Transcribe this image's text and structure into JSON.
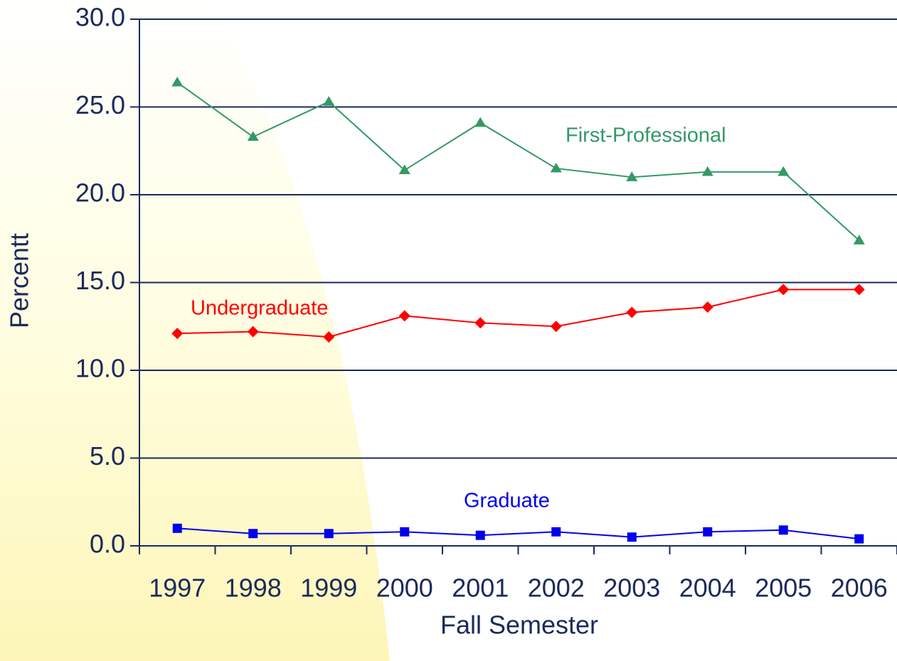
{
  "chart_data": {
    "type": "line",
    "x_label": "Fall Semester",
    "y_label": "Percentt",
    "categories": [
      "1997",
      "1998",
      "1999",
      "2000",
      "2001",
      "2002",
      "2003",
      "2004",
      "2005",
      "2006"
    ],
    "series": [
      {
        "name": "First-Professional",
        "color": "#339966",
        "marker": "triangle",
        "values": [
          26.4,
          23.3,
          25.3,
          21.4,
          24.1,
          21.5,
          21.0,
          21.3,
          21.3,
          17.4
        ]
      },
      {
        "name": "Undergraduate",
        "color": "#ff0000",
        "marker": "diamond",
        "values": [
          12.1,
          12.2,
          11.9,
          13.1,
          12.7,
          12.5,
          13.3,
          13.6,
          14.6,
          14.6
        ]
      },
      {
        "name": "Graduate",
        "color": "#0000ee",
        "marker": "square",
        "values": [
          1.0,
          0.7,
          0.7,
          0.8,
          0.6,
          0.8,
          0.5,
          0.8,
          0.9,
          0.4
        ]
      }
    ],
    "ylim": [
      0,
      30
    ],
    "yticks": [
      {
        "value": 0,
        "label": "0.0"
      },
      {
        "value": 5,
        "label": "5.0"
      },
      {
        "value": 10,
        "label": "10.0"
      },
      {
        "value": 15,
        "label": "15.0"
      },
      {
        "value": 20,
        "label": "20.0"
      },
      {
        "value": 25,
        "label": "25.0"
      },
      {
        "value": 30,
        "label": "30.0"
      }
    ],
    "grid": true
  }
}
